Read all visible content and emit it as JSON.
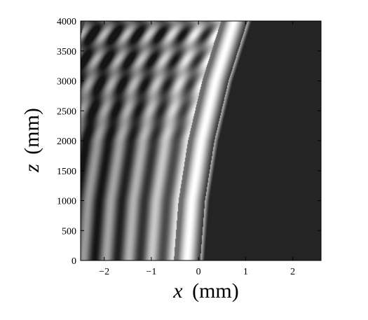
{
  "chart_data": {
    "type": "heatmap",
    "title": "",
    "colormap": "grayscale",
    "xlabel": {
      "symbol": "x",
      "unit": "(mm)"
    },
    "ylabel": {
      "symbol": "z",
      "unit": "(mm)"
    },
    "xlim": [
      -2.5,
      2.6
    ],
    "ylim": [
      0,
      4000
    ],
    "xticks": [
      -2,
      -1,
      0,
      1,
      2
    ],
    "xtick_labels": [
      "−2",
      "−1",
      "0",
      "1",
      "2"
    ],
    "yticks": [
      0,
      500,
      1000,
      1500,
      2000,
      2500,
      3000,
      3500,
      4000
    ],
    "ytick_labels": [
      "0",
      "500",
      "1000",
      "1500",
      "2000",
      "2500",
      "3000",
      "3500",
      "4000"
    ],
    "field": {
      "description_free": true,
      "main_lobe_center_x_at_z": [
        {
          "z": 0,
          "x": -0.25
        },
        {
          "z": 1000,
          "x": -0.15
        },
        {
          "z": 2000,
          "x": 0.05
        },
        {
          "z": 3000,
          "x": 0.35
        },
        {
          "z": 4000,
          "x": 0.75
        }
      ],
      "main_lobe_half_width_mm": 0.28,
      "fringe_period_mm": 0.48,
      "fringe_count": 5,
      "dark_region_color": "#242424",
      "peak_color": "#ffffff"
    }
  }
}
